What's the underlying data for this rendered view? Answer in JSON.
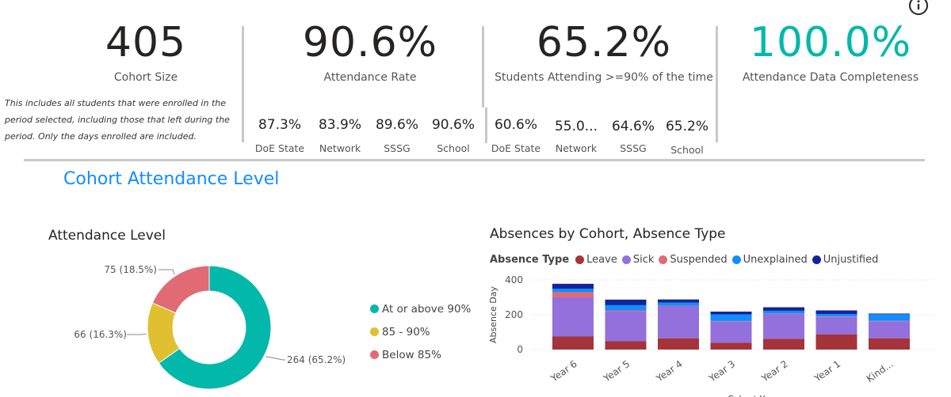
{
  "info_icon": "info-icon",
  "kpis": [
    {
      "value": "405",
      "label": "Cohort Size",
      "color": "#252423"
    },
    {
      "value": "90.6%",
      "label": "Attendance Rate",
      "color": "#252423"
    },
    {
      "value": "65.2%",
      "label": "Students Attending >=90% of the time",
      "color": "#252423"
    },
    {
      "value": "100.0%",
      "label": "Attendance Data Completeness",
      "color": "#01b8aa"
    }
  ],
  "cohort_note": "This includes all students that were enrolled in the period selected, including those that left during the period. Only the days enrolled are included.",
  "attendance_rate_breakdown": [
    {
      "value": "87.3%",
      "label": "DoE State"
    },
    {
      "value": "83.9%",
      "label": "Network"
    },
    {
      "value": "89.6%",
      "label": "SSSG"
    },
    {
      "value": "90.6%",
      "label": "School"
    }
  ],
  "attending_breakdown": [
    {
      "value": "60.6%",
      "label": "DoE State"
    },
    {
      "value": "55.0...",
      "label": "Network"
    },
    {
      "value": "64.6%",
      "label": "SSSG"
    },
    {
      "value": "65.2%",
      "label": "School"
    }
  ],
  "section_title": "Cohort Attendance Level",
  "donut": {
    "title": "Attendance Level",
    "slices": [
      {
        "name": "At or above 90%",
        "value": 264,
        "label": "264 (65.2%)",
        "color": "#01b8aa"
      },
      {
        "name": "85 - 90%",
        "value": 66,
        "label": "66 (16.3%)",
        "color": "#e0c030"
      },
      {
        "name": "Below 85%",
        "value": 75,
        "label": "75 (18.5%)",
        "color": "#e06b74"
      }
    ]
  },
  "chart_data": {
    "type": "bar",
    "stacked": true,
    "title": "Absences by Cohort, Absence Type",
    "legend_title": "Absence Type",
    "legend_position": "top-left",
    "ylabel": "Absence Day",
    "xlabel": "Cohort Year",
    "ylim": [
      0,
      400
    ],
    "yticks": [
      0,
      200,
      400
    ],
    "grid": true,
    "categories": [
      "Year 6",
      "Year 5",
      "Year 4",
      "Year 3",
      "Year 2",
      "Year 1",
      "Kind..."
    ],
    "series": [
      {
        "name": "Leave",
        "color": "#a4343a",
        "values": [
          75,
          48,
          65,
          40,
          62,
          88,
          65
        ]
      },
      {
        "name": "Sick",
        "color": "#9370db",
        "values": [
          225,
          173,
          185,
          122,
          143,
          100,
          98
        ]
      },
      {
        "name": "Suspended",
        "color": "#e06b74",
        "values": [
          30,
          4,
          2,
          2,
          2,
          2,
          2
        ]
      },
      {
        "name": "Unexplained",
        "color": "#118dff",
        "values": [
          20,
          30,
          18,
          38,
          16,
          14,
          38
        ]
      },
      {
        "name": "Unjustified",
        "color": "#12239e",
        "values": [
          28,
          32,
          18,
          16,
          20,
          21,
          4
        ]
      }
    ]
  }
}
